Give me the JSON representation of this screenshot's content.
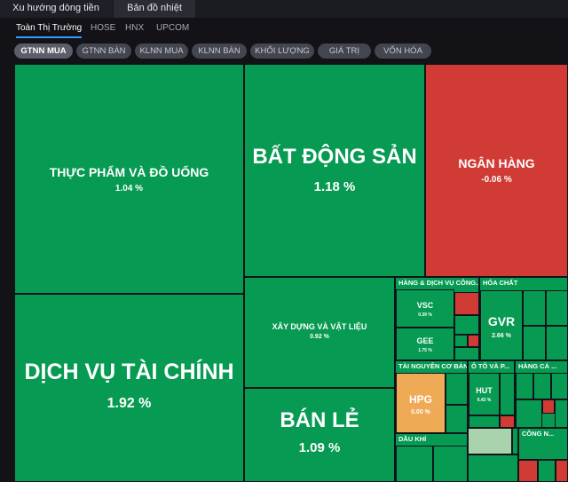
{
  "tabs": [
    "Xu hướng dòng tiền",
    "Bản đồ nhiệt"
  ],
  "markets": [
    "Toàn Thị Trường",
    "HOSE",
    "HNX",
    "UPCOM"
  ],
  "filters": [
    "GTNN MUA",
    "GTNN BÁN",
    "KLNN MUA",
    "KLNN BÁN",
    "KHỐI LƯỢNG",
    "GIÁ TRỊ",
    "VỐN HÓA"
  ],
  "colors": {
    "up": "#069a52",
    "down": "#d13b35",
    "ref": "#efaa56",
    "accent": "#2f9cff"
  },
  "sectors": {
    "thuc_pham": {
      "name": "THỰC PHẨM VÀ ĐỒ UỐNG",
      "pct": "1.04 %"
    },
    "bat_dong_san": {
      "name": "BẤT ĐỘNG SẢN",
      "pct": "1.18 %"
    },
    "ngan_hang": {
      "name": "NGÂN HÀNG",
      "pct": "-0.06 %"
    },
    "dich_vu_tai_chinh": {
      "name": "DỊCH VỤ TÀI CHÍNH",
      "pct": "1.92 %"
    },
    "xay_dung": {
      "name": "XÂY DỰNG VÀ VẬT LIỆU",
      "pct": "0.92 %"
    },
    "ban_le": {
      "name": "BÁN LẺ",
      "pct": "1.09 %"
    },
    "hang_dich_vu": {
      "name": "HÀNG & DỊCH VỤ CÔNG...",
      "stocks": [
        {
          "code": "VSC",
          "pct": "0.39 %"
        },
        {
          "code": "GEE",
          "pct": "1.75 %"
        }
      ]
    },
    "hoa_chat": {
      "name": "HÓA CHẤT",
      "stocks": [
        {
          "code": "GVR",
          "pct": "2.66 %"
        }
      ]
    },
    "tai_nguyen": {
      "name": "TÀI NGUYÊN CƠ BẢN",
      "stocks": [
        {
          "code": "HPG",
          "pct": "0.00 %"
        }
      ]
    },
    "o_to": {
      "name": "Ô TÔ VÀ P...",
      "stocks": [
        {
          "code": "HUT",
          "pct": "6.43 %"
        }
      ]
    },
    "hang_ca_nhan": {
      "name": "HÀNG CÁ ..."
    },
    "cong_nghe": {
      "name": "CÔNG N..."
    },
    "dau_khi": {
      "name": "DẦU KHÍ"
    }
  }
}
